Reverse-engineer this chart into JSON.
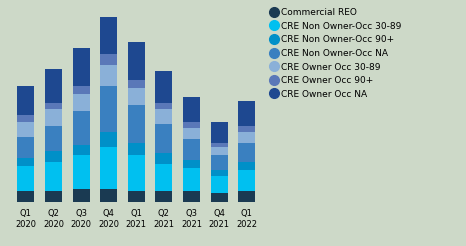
{
  "categories": [
    "Q1\n2020",
    "Q2\n2020",
    "Q3\n2020",
    "Q4\n2020",
    "Q1\n2021",
    "Q2\n2021",
    "Q3\n2021",
    "Q4\n2021",
    "Q1\n2022"
  ],
  "series": [
    {
      "name": "Commercial REO",
      "color": "#1a3a52",
      "values": [
        5,
        5,
        6,
        6,
        5,
        5,
        5,
        4,
        5
      ]
    },
    {
      "name": "CRE Non Owner-Occ 30-89",
      "color": "#00c0f0",
      "values": [
        12,
        14,
        16,
        20,
        17,
        13,
        11,
        8,
        10
      ]
    },
    {
      "name": "CRE Non Owner-Occ 90+",
      "color": "#0090c8",
      "values": [
        4,
        5,
        5,
        7,
        6,
        5,
        4,
        3,
        4
      ]
    },
    {
      "name": "CRE Non Owner-Occ NA",
      "color": "#3a80c0",
      "values": [
        10,
        12,
        16,
        22,
        18,
        14,
        10,
        7,
        9
      ]
    },
    {
      "name": "CRE Owner Occ 30-89",
      "color": "#8ab0d8",
      "values": [
        7,
        8,
        8,
        10,
        8,
        7,
        5,
        4,
        5
      ]
    },
    {
      "name": "CRE Owner Occ 90+",
      "color": "#5a78b8",
      "values": [
        3,
        3,
        4,
        5,
        4,
        3,
        3,
        2,
        3
      ]
    },
    {
      "name": "CRE Owner Occ NA",
      "color": "#1e4890",
      "values": [
        14,
        16,
        18,
        18,
        18,
        15,
        12,
        10,
        12
      ]
    }
  ],
  "background_color": "#cdd9c8",
  "legend_fontsize": 6.5,
  "tick_fontsize": 6.0,
  "bar_width": 0.62,
  "figsize": [
    4.66,
    2.46
  ],
  "dpi": 100
}
